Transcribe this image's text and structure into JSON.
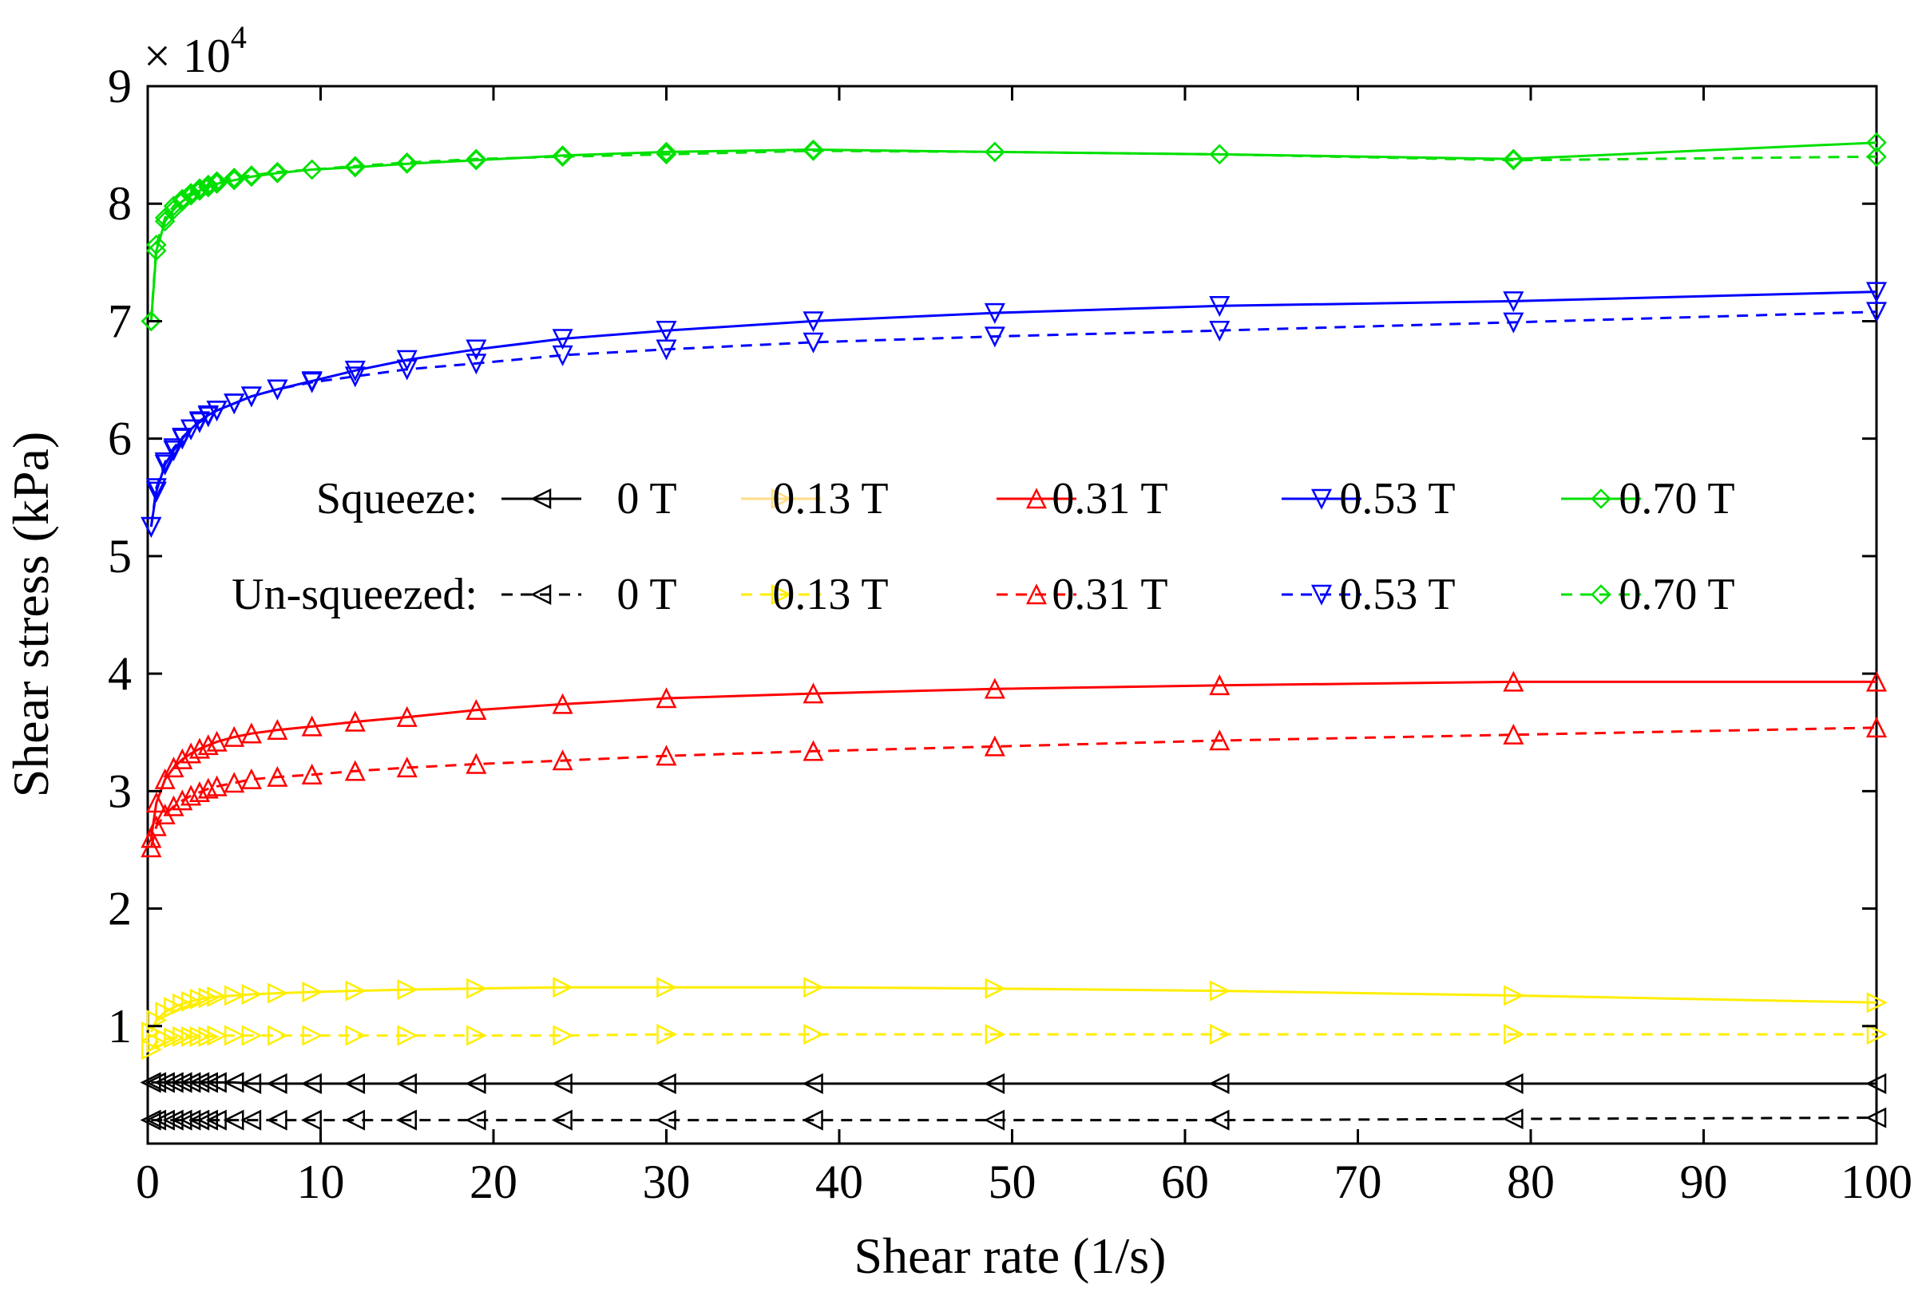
{
  "chart_data": {
    "type": "line",
    "title": "",
    "xlabel": "Shear rate (1/s)",
    "ylabel": "Shear stress (kPa)",
    "xlim": [
      0,
      100
    ],
    "ylim": [
      0,
      90000
    ],
    "xticks": [
      0,
      10,
      20,
      30,
      40,
      50,
      60,
      70,
      80,
      90,
      100
    ],
    "xtick_labels": [
      "0",
      "10",
      "20",
      "30",
      "40",
      "50",
      "60",
      "70",
      "80",
      "90",
      "100"
    ],
    "yticks": [
      10000,
      20000,
      30000,
      40000,
      50000,
      60000,
      70000,
      80000,
      90000
    ],
    "ytick_labels": [
      "1",
      "2",
      "3",
      "4",
      "5",
      "6",
      "7",
      "8",
      "9"
    ],
    "y_multiplier": {
      "base": "× 10",
      "exponent": "4"
    },
    "grid": false,
    "legend": {
      "placement": "center",
      "rows": [
        {
          "label": "Squeeze:",
          "style": "solid"
        },
        {
          "label": "Un-squeezed:",
          "style": "dashed"
        }
      ],
      "entries": [
        "0 T",
        "0.13 T",
        "0.31 T",
        "0.53 T",
        "0.70 T"
      ]
    },
    "x": [
      0.2,
      0.5,
      1,
      1.5,
      2,
      2.5,
      3,
      3.5,
      4,
      5,
      6,
      7.5,
      9.5,
      12,
      15,
      19,
      24,
      30,
      38.5,
      49,
      62,
      79,
      100
    ],
    "series": [
      {
        "name": "0 T",
        "group": "Squeeze",
        "color": "#000000",
        "marker": "triangle-left",
        "dash": false,
        "values": [
          5200,
          5200,
          5200,
          5200,
          5200,
          5200,
          5200,
          5200,
          5200,
          5200,
          5100,
          5100,
          5100,
          5100,
          5100,
          5100,
          5100,
          5100,
          5100,
          5100,
          5100,
          5100,
          5100
        ]
      },
      {
        "name": "0 T",
        "group": "Un-squeezed",
        "color": "#000000",
        "marker": "triangle-left",
        "dash": true,
        "values": [
          2000,
          2000,
          2000,
          2000,
          2000,
          2000,
          2000,
          2000,
          2000,
          2000,
          2000,
          2000,
          2000,
          2000,
          2000,
          2000,
          2000,
          2000,
          2000,
          2000,
          2000,
          2100,
          2200
        ]
      },
      {
        "name": "0.13 T",
        "group": "Squeeze",
        "color": "#ffee00",
        "marker": "triangle-right",
        "dash": false,
        "values": [
          9500,
          10500,
          11200,
          11600,
          11900,
          12100,
          12300,
          12400,
          12500,
          12600,
          12700,
          12800,
          12900,
          13000,
          13100,
          13200,
          13300,
          13300,
          13300,
          13200,
          13000,
          12600,
          12000
        ]
      },
      {
        "name": "0.13 T",
        "group": "Un-squeezed",
        "color": "#ffee00",
        "marker": "triangle-right",
        "dash": true,
        "values": [
          8000,
          8600,
          8900,
          9000,
          9100,
          9100,
          9100,
          9100,
          9200,
          9200,
          9200,
          9200,
          9200,
          9200,
          9200,
          9200,
          9200,
          9300,
          9300,
          9300,
          9300,
          9300,
          9300
        ]
      },
      {
        "name": "0.31 T",
        "group": "Squeeze",
        "color": "#ff0000",
        "marker": "triangle-up",
        "dash": false,
        "values": [
          26000,
          29000,
          31000,
          32000,
          32700,
          33200,
          33600,
          33900,
          34200,
          34600,
          34900,
          35200,
          35500,
          35900,
          36300,
          36900,
          37400,
          37900,
          38300,
          38700,
          39000,
          39300,
          39300
        ]
      },
      {
        "name": "0.31 T",
        "group": "Un-squeezed",
        "color": "#ff0000",
        "marker": "triangle-up",
        "dash": true,
        "values": [
          25200,
          27000,
          28000,
          28700,
          29200,
          29600,
          29900,
          30200,
          30400,
          30700,
          31000,
          31200,
          31400,
          31700,
          32000,
          32300,
          32600,
          33000,
          33400,
          33800,
          34300,
          34800,
          35400
        ]
      },
      {
        "name": "0.53 T",
        "group": "Squeeze",
        "color": "#0000ff",
        "marker": "triangle-down",
        "dash": false,
        "values": [
          52500,
          55500,
          57800,
          59000,
          60000,
          60800,
          61500,
          62000,
          62400,
          63000,
          63600,
          64200,
          64900,
          65800,
          66700,
          67600,
          68500,
          69200,
          70000,
          70700,
          71300,
          71700,
          72500
        ]
      },
      {
        "name": "0.53 T",
        "group": "Un-squeezed",
        "color": "#0000ff",
        "marker": "triangle-down",
        "dash": true,
        "values": [
          52500,
          55800,
          58000,
          59200,
          60100,
          60800,
          61400,
          61900,
          62400,
          63000,
          63600,
          64200,
          64800,
          65300,
          65900,
          66400,
          67100,
          67600,
          68200,
          68700,
          69200,
          69900,
          70800
        ]
      },
      {
        "name": "0.70 T",
        "group": "Squeeze",
        "color": "#00e000",
        "marker": "diamond",
        "dash": false,
        "values": [
          70000,
          76000,
          78500,
          79500,
          80200,
          80700,
          81100,
          81400,
          81700,
          82000,
          82300,
          82600,
          82900,
          83100,
          83400,
          83700,
          84100,
          84400,
          84600,
          84400,
          84200,
          83800,
          85200
        ]
      },
      {
        "name": "0.70 T",
        "group": "Un-squeezed",
        "color": "#00e000",
        "marker": "diamond",
        "dash": true,
        "values": [
          70000,
          76500,
          78800,
          79800,
          80400,
          80900,
          81300,
          81600,
          81900,
          82200,
          82400,
          82700,
          82900,
          83200,
          83500,
          83800,
          84000,
          84200,
          84500,
          84400,
          84200,
          83700,
          84000
        ]
      }
    ]
  }
}
